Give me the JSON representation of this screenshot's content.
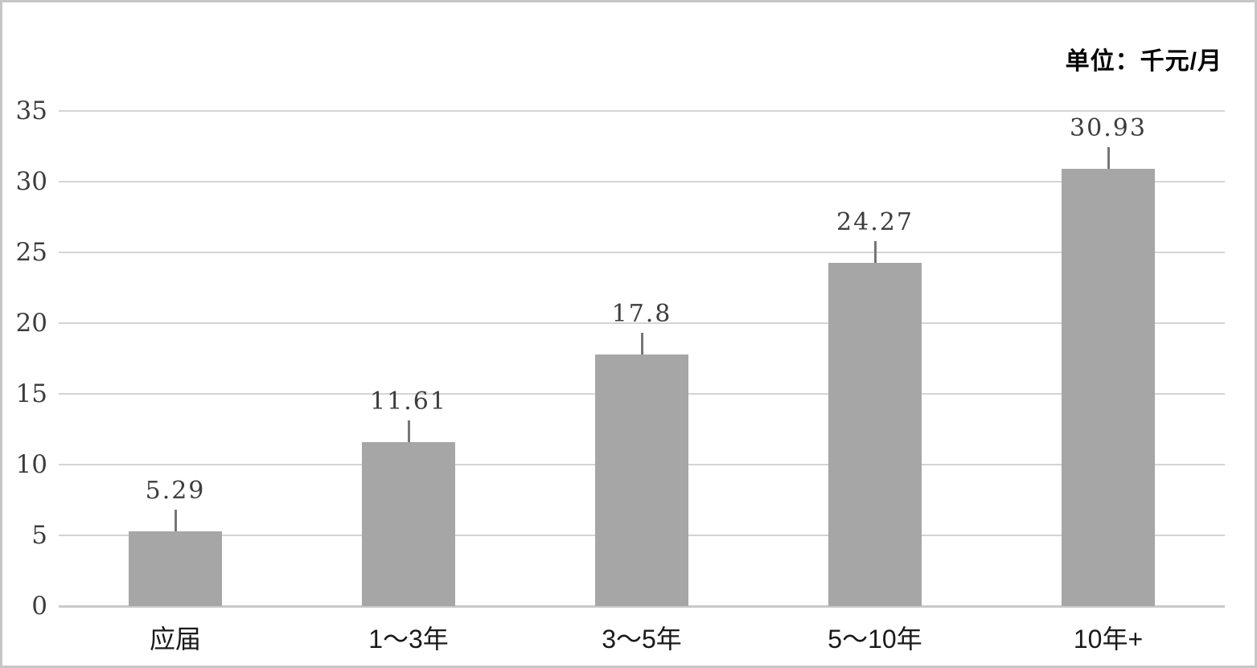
{
  "unit_label": "单位：千元/月",
  "colors": {
    "bar": "#a6a6a6",
    "gridline": "#d4d4d4",
    "baseline": "#c9c9c9",
    "leader_line": "#767676",
    "value_text": "#3d3d3d",
    "axis_text": "#3d3d3d",
    "category_text": "#1a1a1a",
    "frame_border": "#c6c6c6",
    "background": "#ffffff"
  },
  "chart_data": {
    "type": "bar",
    "title": "",
    "unit": "单位：千元/月",
    "categories": [
      "应届",
      "1～3年",
      "3～5年",
      "5～10年",
      "10年+"
    ],
    "values": [
      5.29,
      11.61,
      17.8,
      24.27,
      30.93
    ],
    "value_labels": [
      "5.29",
      "11.61",
      "17.8",
      "24.27",
      "30.93"
    ],
    "xlabel": "",
    "ylabel": "",
    "ylim": [
      0,
      35
    ],
    "yticks": [
      0,
      5,
      10,
      15,
      20,
      25,
      30,
      35
    ],
    "grid": true,
    "legend": "none"
  }
}
